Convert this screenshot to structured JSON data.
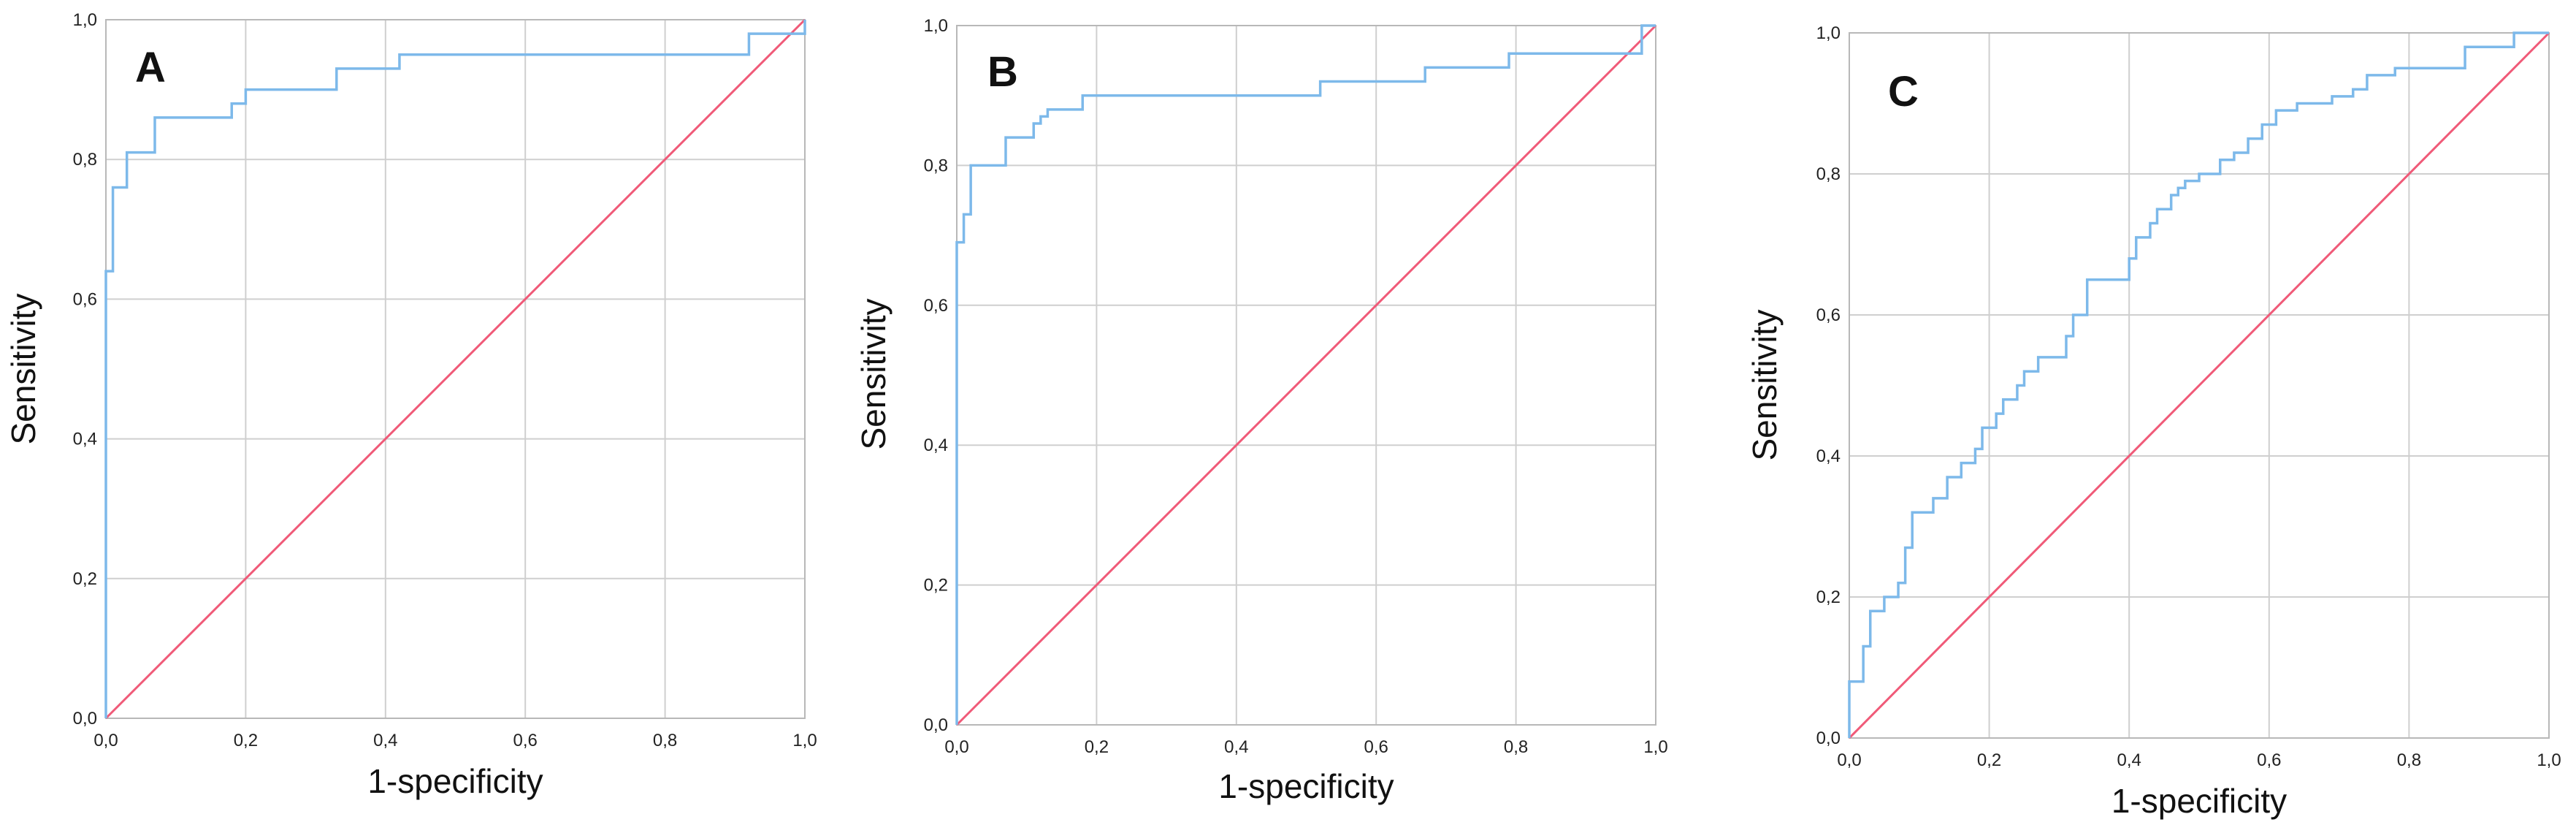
{
  "chart_data": [
    {
      "panel_label": "A",
      "type": "line",
      "xlabel": "1-specificity",
      "ylabel": "Sensitivity",
      "xlim": [
        0,
        1
      ],
      "ylim": [
        0,
        1
      ],
      "grid": true,
      "ticks": [
        0,
        0.2,
        0.4,
        0.6,
        0.8,
        1.0
      ],
      "tick_labels": [
        "0,0",
        "0,2",
        "0,4",
        "0,6",
        "0,8",
        "1,0"
      ],
      "colors": {
        "roc": "#7db9ea",
        "reference": "#f05a78",
        "grid": "#cfcfcf"
      },
      "series": [
        {
          "x": [
            0,
            0,
            0.01,
            0.01,
            0.03,
            0.03,
            0.07,
            0.07,
            0.18,
            0.18,
            0.2,
            0.2,
            0.33,
            0.33,
            0.42,
            0.42,
            0.92,
            0.92,
            1.0,
            1.0
          ],
          "y": [
            0,
            0.64,
            0.64,
            0.76,
            0.76,
            0.81,
            0.81,
            0.86,
            0.86,
            0.88,
            0.88,
            0.9,
            0.9,
            0.93,
            0.93,
            0.95,
            0.95,
            0.98,
            0.98,
            1.0
          ]
        },
        {
          "x": [
            0,
            1
          ],
          "y": [
            0,
            1
          ]
        }
      ]
    },
    {
      "panel_label": "B",
      "type": "line",
      "xlabel": "1-specificity",
      "ylabel": "Sensitivity",
      "xlim": [
        0,
        1
      ],
      "ylim": [
        0,
        1
      ],
      "grid": true,
      "ticks": [
        0,
        0.2,
        0.4,
        0.6,
        0.8,
        1.0
      ],
      "tick_labels": [
        "0,0",
        "0,2",
        "0,4",
        "0,6",
        "0,8",
        "1,0"
      ],
      "colors": {
        "roc": "#7db9ea",
        "reference": "#f05a78",
        "grid": "#cfcfcf"
      },
      "series": [
        {
          "x": [
            0,
            0,
            0.01,
            0.01,
            0.02,
            0.02,
            0.07,
            0.07,
            0.11,
            0.11,
            0.12,
            0.12,
            0.13,
            0.13,
            0.18,
            0.18,
            0.52,
            0.52,
            0.67,
            0.67,
            0.79,
            0.79,
            0.98,
            0.98,
            1.0
          ],
          "y": [
            0,
            0.69,
            0.69,
            0.73,
            0.73,
            0.8,
            0.8,
            0.84,
            0.84,
            0.86,
            0.86,
            0.87,
            0.87,
            0.88,
            0.88,
            0.9,
            0.9,
            0.92,
            0.92,
            0.94,
            0.94,
            0.96,
            0.96,
            1.0,
            1.0
          ]
        },
        {
          "x": [
            0,
            1
          ],
          "y": [
            0,
            1
          ]
        }
      ]
    },
    {
      "panel_label": "C",
      "type": "line",
      "xlabel": "1-specificity",
      "ylabel": "Sensitivity",
      "xlim": [
        0,
        1
      ],
      "ylim": [
        0,
        1
      ],
      "grid": true,
      "ticks": [
        0,
        0.2,
        0.4,
        0.6,
        0.8,
        1.0
      ],
      "tick_labels": [
        "0,0",
        "0,2",
        "0,4",
        "0,6",
        "0,8",
        "1,0"
      ],
      "colors": {
        "roc": "#7db9ea",
        "reference": "#f05a78",
        "grid": "#cfcfcf"
      },
      "series": [
        {
          "x": [
            0,
            0,
            0.02,
            0.02,
            0.03,
            0.03,
            0.05,
            0.05,
            0.07,
            0.07,
            0.08,
            0.08,
            0.09,
            0.09,
            0.12,
            0.12,
            0.14,
            0.14,
            0.16,
            0.16,
            0.18,
            0.18,
            0.19,
            0.19,
            0.21,
            0.21,
            0.22,
            0.22,
            0.24,
            0.24,
            0.25,
            0.25,
            0.27,
            0.27,
            0.31,
            0.31,
            0.32,
            0.32,
            0.34,
            0.34,
            0.4,
            0.4,
            0.41,
            0.41,
            0.43,
            0.43,
            0.44,
            0.44,
            0.46,
            0.46,
            0.47,
            0.47,
            0.48,
            0.48,
            0.5,
            0.5,
            0.53,
            0.53,
            0.55,
            0.55,
            0.57,
            0.57,
            0.59,
            0.59,
            0.61,
            0.61,
            0.64,
            0.64,
            0.69,
            0.69,
            0.72,
            0.72,
            0.74,
            0.74,
            0.78,
            0.78,
            0.88,
            0.88,
            0.95,
            0.95,
            1.0
          ],
          "y": [
            0,
            0.08,
            0.08,
            0.13,
            0.13,
            0.18,
            0.18,
            0.2,
            0.2,
            0.22,
            0.22,
            0.27,
            0.27,
            0.32,
            0.32,
            0.34,
            0.34,
            0.37,
            0.37,
            0.39,
            0.39,
            0.41,
            0.41,
            0.44,
            0.44,
            0.46,
            0.46,
            0.48,
            0.48,
            0.5,
            0.5,
            0.52,
            0.52,
            0.54,
            0.54,
            0.57,
            0.57,
            0.6,
            0.6,
            0.65,
            0.65,
            0.68,
            0.68,
            0.71,
            0.71,
            0.73,
            0.73,
            0.75,
            0.75,
            0.77,
            0.77,
            0.78,
            0.78,
            0.79,
            0.79,
            0.8,
            0.8,
            0.82,
            0.82,
            0.83,
            0.83,
            0.85,
            0.85,
            0.87,
            0.87,
            0.89,
            0.89,
            0.9,
            0.9,
            0.91,
            0.91,
            0.92,
            0.92,
            0.94,
            0.94,
            0.95,
            0.95,
            0.98,
            0.98,
            1.0,
            1.0
          ]
        },
        {
          "x": [
            0,
            1
          ],
          "y": [
            0,
            1
          ]
        }
      ]
    }
  ]
}
